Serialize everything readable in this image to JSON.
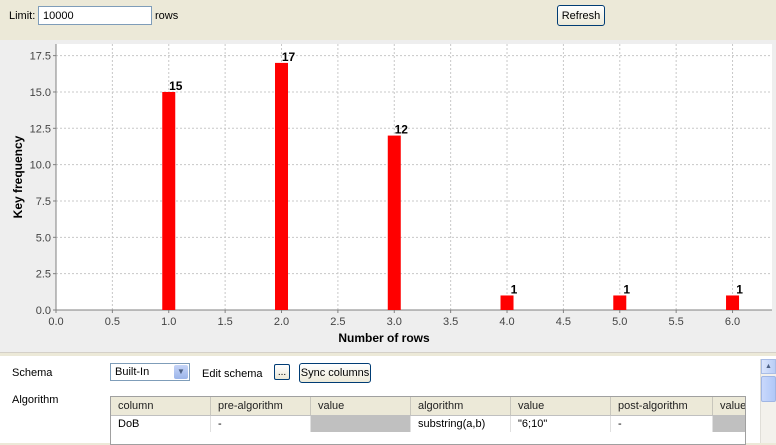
{
  "toolbar": {
    "limit_label": "Limit:",
    "limit_value": "10000",
    "rows_label": "rows",
    "refresh_label": "Refresh"
  },
  "chart_data": {
    "type": "bar",
    "x": [
      1.0,
      2.0,
      3.0,
      4.0,
      5.0,
      6.0
    ],
    "values": [
      15,
      17,
      12,
      1,
      1,
      1
    ],
    "data_labels": [
      "15",
      "17",
      "12",
      "1",
      "1",
      "1"
    ],
    "xlabel": "Number of rows",
    "ylabel": "Key frequency",
    "xlim": [
      0.0,
      6.35
    ],
    "ylim": [
      0.0,
      18.3
    ],
    "x_ticks": [
      "0.0",
      "0.5",
      "1.0",
      "1.5",
      "2.0",
      "2.5",
      "3.0",
      "3.5",
      "4.0",
      "4.5",
      "5.0",
      "5.5",
      "6.0"
    ],
    "y_ticks": [
      "0.0",
      "2.5",
      "5.0",
      "7.5",
      "10.0",
      "12.5",
      "15.0",
      "17.5"
    ],
    "grid": true,
    "bar_color": "#ff0000"
  },
  "schema": {
    "label": "Schema",
    "selected": "Built-In",
    "edit_schema_label": "Edit schema",
    "ellipsis_label": "...",
    "sync_columns_label": "Sync columns"
  },
  "algorithm": {
    "label": "Algorithm",
    "headers": [
      "column",
      "pre-algorithm",
      "value",
      "algorithm",
      "value",
      "post-algorithm",
      "value"
    ],
    "rows": [
      {
        "column": "DoB",
        "pre_algorithm": "-",
        "pre_value": "",
        "algorithm": "substring(a,b)",
        "value": "\"6;10\"",
        "post_algorithm": "-",
        "post_value": ""
      }
    ]
  },
  "icons": {
    "dropdown": "chevron-down-icon",
    "scroll_up": "scroll-up-arrow-icon"
  }
}
